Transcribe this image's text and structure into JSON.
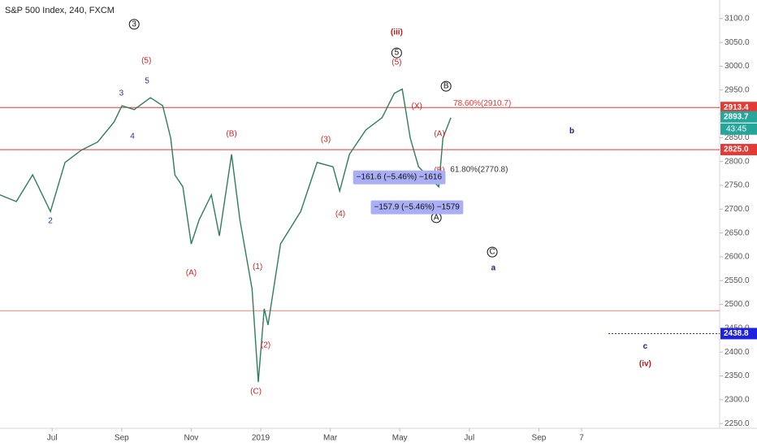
{
  "chart_data": {
    "type": "line",
    "title": "S&P 500 Index, 240, FXCM",
    "color": "#2f7d5c",
    "x": [
      -1.5,
      -1.03,
      -0.56,
      -0.05,
      0.37,
      0.84,
      1.31,
      1.78,
      2.01,
      2.36,
      2.83,
      3.18,
      3.41,
      3.53,
      3.76,
      4.0,
      4.23,
      4.58,
      4.81,
      5.16,
      5.4,
      5.75,
      5.93,
      6.1,
      6.21,
      6.57,
      7.15,
      7.62,
      8.08,
      8.27,
      8.55,
      9.02,
      9.49,
      9.84,
      10.07,
      10.3,
      10.54,
      10.77,
      11.12,
      11.24,
      11.47
    ],
    "values": [
      2730,
      2716,
      2772,
      2695,
      2798,
      2824,
      2841,
      2883,
      2917,
      2909,
      2934,
      2917,
      2849,
      2772,
      2747,
      2627,
      2678,
      2730,
      2644,
      2815,
      2678,
      2533,
      2337,
      2491,
      2457,
      2627,
      2695,
      2798,
      2789,
      2738,
      2815,
      2866,
      2892,
      2943,
      2952,
      2849,
      2789,
      2772,
      2747,
      2849,
      2892
    ],
    "xlim": [
      -1.5,
      19.2
    ],
    "xticks": [
      {
        "value": 0,
        "label": "Jul"
      },
      {
        "value": 2,
        "label": "Sep"
      },
      {
        "value": 4,
        "label": "Nov"
      },
      {
        "value": 6,
        "label": "2019"
      },
      {
        "value": 8,
        "label": "Mar"
      },
      {
        "value": 10,
        "label": "May"
      },
      {
        "value": 12,
        "label": "Jul"
      },
      {
        "value": 14,
        "label": "Sep"
      },
      {
        "value": 15.23,
        "label": "7"
      }
    ],
    "ylim": [
      2240,
      3139
    ],
    "yticks": [
      {
        "value": 2250,
        "label": "2250.0"
      },
      {
        "value": 2300,
        "label": "2300.0"
      },
      {
        "value": 2350,
        "label": "2350.0"
      },
      {
        "value": 2400,
        "label": "2400.0"
      },
      {
        "value": 2450,
        "label": "2450.0"
      },
      {
        "value": 2500,
        "label": "2500.0"
      },
      {
        "value": 2550,
        "label": "2550.0"
      },
      {
        "value": 2600,
        "label": "2600.0"
      },
      {
        "value": 2650,
        "label": "2650.0"
      },
      {
        "value": 2700,
        "label": "2700.0"
      },
      {
        "value": 2750,
        "label": "2750.0"
      },
      {
        "value": 2800,
        "label": "2800.0"
      },
      {
        "value": 2850,
        "label": "2850.0"
      },
      {
        "value": 2900,
        "label": "2900.0"
      },
      {
        "value": 2950,
        "label": "2950.0"
      },
      {
        "value": 3000,
        "label": "3000.0"
      },
      {
        "value": 3050,
        "label": "3050.0"
      },
      {
        "value": 3100,
        "label": "3100.0"
      }
    ],
    "hlines": [
      {
        "value": 2913.4,
        "label": "2913.4",
        "color": "#e53935",
        "style": "solid"
      },
      {
        "value": 2825,
        "label": "2825.0",
        "color": "#e53935",
        "style": "solid"
      },
      {
        "value": 2438.8,
        "label": "2438.8",
        "color": "#1e22e0",
        "style": "dotted",
        "from": 16.0
      },
      {
        "value": 2487,
        "color": "#e53935",
        "style": "thin"
      }
    ],
    "last_price": {
      "value": 2893.7,
      "label": "2893.7",
      "countdown": "43:45",
      "color": "#26a69a"
    },
    "annotations": [
      {
        "text": "3",
        "x": 2.36,
        "y": 3088,
        "color": "#111",
        "circle": true
      },
      {
        "text": "(5)",
        "x": 2.71,
        "y": 3011,
        "color": "#c62828"
      },
      {
        "text": "5",
        "x": 2.73,
        "y": 2969,
        "color": "#283593"
      },
      {
        "text": "3",
        "x": 1.99,
        "y": 2943,
        "color": "#283593"
      },
      {
        "text": "4",
        "x": 2.31,
        "y": 2853,
        "color": "#283593"
      },
      {
        "text": "2",
        "x": -0.05,
        "y": 2675,
        "color": "#283593"
      },
      {
        "text": "(B)",
        "x": 5.16,
        "y": 2858,
        "color": "#c62828"
      },
      {
        "text": "(A)",
        "x": 4.0,
        "y": 2566,
        "color": "#c62828"
      },
      {
        "text": "(1)",
        "x": 5.91,
        "y": 2579,
        "color": "#c62828"
      },
      {
        "text": "(2)",
        "x": 6.14,
        "y": 2414,
        "color": "#c62828"
      },
      {
        "text": "(C)",
        "x": 5.86,
        "y": 2317,
        "color": "#c62828"
      },
      {
        "text": "(3)",
        "x": 7.87,
        "y": 2846,
        "color": "#c62828"
      },
      {
        "text": "(4)",
        "x": 8.29,
        "y": 2690,
        "color": "#c62828"
      },
      {
        "text": "(iii)",
        "x": 9.91,
        "y": 3071,
        "color": "#b71c1c",
        "bold": true
      },
      {
        "text": "5",
        "x": 9.91,
        "y": 3028,
        "color": "#111",
        "circle": true
      },
      {
        "text": "(5)",
        "x": 9.91,
        "y": 3008,
        "color": "#c62828"
      },
      {
        "text": "B",
        "x": 11.33,
        "y": 2958,
        "color": "#111",
        "circle": true
      },
      {
        "text": "A",
        "x": 11.05,
        "y": 2682,
        "color": "#111",
        "circle": true
      },
      {
        "text": "C",
        "x": 12.66,
        "y": 2610,
        "color": "#111",
        "circle": true
      },
      {
        "text": "a",
        "x": 12.69,
        "y": 2576,
        "color": "#1a237e",
        "bold": true
      },
      {
        "text": "b",
        "x": 14.95,
        "y": 2864,
        "color": "#1a237e",
        "bold": true
      },
      {
        "text": "c",
        "x": 17.06,
        "y": 2412,
        "color": "#1a237e",
        "bold": true
      },
      {
        "text": "(iv)",
        "x": 17.06,
        "y": 2375,
        "color": "#b71c1c",
        "bold": true
      },
      {
        "text": "(X)",
        "x": 10.49,
        "y": 2916,
        "color": "#c62828"
      },
      {
        "text": "(A)",
        "x": 11.14,
        "y": 2858,
        "color": "#c62828"
      },
      {
        "text": "(B)",
        "x": 11.14,
        "y": 2781,
        "color": "#c62828"
      },
      {
        "text": "78.60%(2910.7)",
        "x": 11.54,
        "y": 2922,
        "color": "#e53935",
        "anchor": "start"
      },
      {
        "text": "61.80%(2770.8)",
        "x": 11.45,
        "y": 2783,
        "color": "#333",
        "anchor": "start"
      },
      {
        "text": "−161.6 (−5.46%) −1616",
        "x": 9.98,
        "y": 2767,
        "color": "#111",
        "box": true
      },
      {
        "text": "−157.9 (−5.46%) −1579",
        "x": 10.49,
        "y": 2704,
        "color": "#111",
        "box": true
      }
    ]
  }
}
